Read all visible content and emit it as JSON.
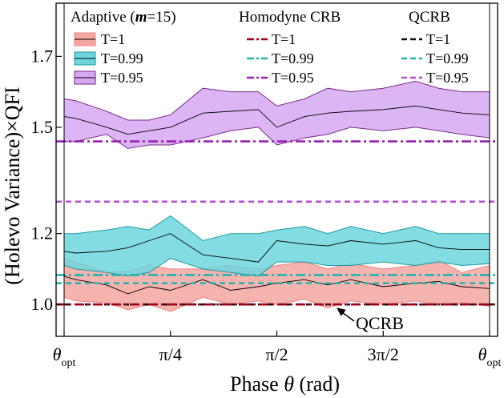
{
  "chart_data": {
    "type": "line",
    "xlabel": "Phase θ (rad)",
    "ylabel": "(Holevo Variance)×QFI",
    "xlim": [
      0,
      4.6
    ],
    "ylim": [
      0.91,
      1.85
    ],
    "x_ticks": [
      {
        "pos": 0,
        "main": "θ",
        "sub": "opt"
      },
      {
        "pos": 1.15,
        "main": "π/4",
        "sub": ""
      },
      {
        "pos": 2.3,
        "main": "π/2",
        "sub": ""
      },
      {
        "pos": 3.45,
        "main": "3π/2",
        "sub": ""
      },
      {
        "pos": 4.6,
        "main": "θ",
        "sub": "opt"
      }
    ],
    "y_ticks": [
      {
        "value": 1.0,
        "label": "1.0"
      },
      {
        "value": 1.2,
        "label": "1.2"
      },
      {
        "value": 1.5,
        "label": "1.5"
      },
      {
        "value": 1.7,
        "label": "1.7"
      }
    ],
    "x": [
      0,
      0.125,
      0.46,
      0.69,
      0.92,
      1.15,
      1.5,
      1.8,
      2.1,
      2.3,
      2.6,
      2.85,
      3.1,
      3.45,
      3.8,
      4.05,
      4.3,
      4.6
    ],
    "adaptive": [
      {
        "name": "T=1",
        "color": "#f08080",
        "fill": "#f4a7a1",
        "mean": [
          1.08,
          1.07,
          1.055,
          1.03,
          1.05,
          1.04,
          1.07,
          1.04,
          1.05,
          1.06,
          1.07,
          1.055,
          1.07,
          1.05,
          1.06,
          1.065,
          1.05,
          1.045
        ],
        "upper": [
          1.13,
          1.12,
          1.09,
          1.095,
          1.11,
          1.1,
          1.1,
          1.11,
          1.1,
          1.11,
          1.12,
          1.1,
          1.115,
          1.1,
          1.11,
          1.125,
          1.09,
          1.11
        ],
        "lower": [
          1.02,
          1.01,
          1.005,
          0.985,
          1.0,
          0.98,
          1.02,
          1.0,
          1.01,
          1.0,
          1.015,
          0.99,
          1.01,
          1.0,
          1.01,
          1.0,
          1.005,
          0.995
        ]
      },
      {
        "name": "T=0.99",
        "color": "#1a9aa0",
        "fill": "#6dd6dd",
        "mean": [
          1.15,
          1.145,
          1.15,
          1.16,
          1.18,
          1.2,
          1.14,
          1.13,
          1.12,
          1.18,
          1.17,
          1.165,
          1.18,
          1.17,
          1.18,
          1.16,
          1.155,
          1.155
        ],
        "upper": [
          1.2,
          1.2,
          1.21,
          1.22,
          1.21,
          1.25,
          1.18,
          1.2,
          1.2,
          1.21,
          1.22,
          1.2,
          1.22,
          1.2,
          1.22,
          1.2,
          1.2,
          1.2
        ],
        "lower": [
          1.11,
          1.1,
          1.09,
          1.08,
          1.09,
          1.13,
          1.1,
          1.09,
          1.08,
          1.12,
          1.12,
          1.11,
          1.11,
          1.12,
          1.11,
          1.12,
          1.11,
          1.115
        ]
      },
      {
        "name": "T=0.95",
        "color": "#7a2a8a",
        "fill": "#d6a8f2",
        "mean": [
          1.53,
          1.525,
          1.5,
          1.48,
          1.49,
          1.5,
          1.54,
          1.545,
          1.55,
          1.5,
          1.53,
          1.54,
          1.545,
          1.55,
          1.56,
          1.55,
          1.54,
          1.535
        ],
        "upper": [
          1.58,
          1.575,
          1.545,
          1.52,
          1.52,
          1.535,
          1.61,
          1.6,
          1.6,
          1.56,
          1.58,
          1.61,
          1.6,
          1.61,
          1.63,
          1.61,
          1.6,
          1.6
        ],
        "lower": [
          1.46,
          1.46,
          1.48,
          1.44,
          1.45,
          1.45,
          1.47,
          1.49,
          1.5,
          1.45,
          1.47,
          1.48,
          1.5,
          1.49,
          1.5,
          1.49,
          1.48,
          1.47
        ]
      }
    ],
    "homodyne_crb": [
      {
        "name": "T=1",
        "value": 1.0,
        "color": "#a0001a"
      },
      {
        "name": "T=0.99",
        "value": 1.083,
        "color": "#1fb3b3"
      },
      {
        "name": "T=0.95",
        "value": 1.46,
        "color": "#9a1fb0"
      }
    ],
    "qcrb": [
      {
        "name": "T=1",
        "value": 1.0,
        "color": "#111111"
      },
      {
        "name": "T=0.99",
        "value": 1.06,
        "color": "#1fb3b3"
      },
      {
        "name": "T=0.95",
        "value": 1.29,
        "color": "#b44ed0"
      }
    ],
    "legend": {
      "adaptive_title": {
        "prefix": "Adaptive (",
        "var": "m",
        "suffix": "=15)"
      },
      "homodyne_title": "Homodyne CRB",
      "qcrb_title": "QCRB"
    },
    "annotation": "QCRB",
    "grid": false
  }
}
